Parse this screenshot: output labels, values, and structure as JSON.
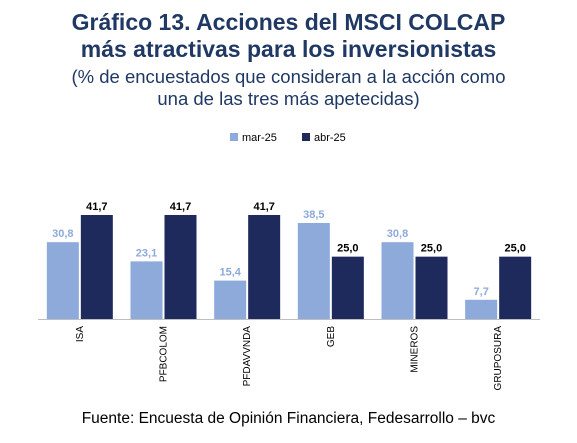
{
  "title_line1": "Gráfico 13. Acciones del MSCI COLCAP",
  "title_line2": "más atractivas para los inversionistas",
  "subtitle_line1": "(% de encuestados que consideran a la acción como",
  "subtitle_line2": "una de las tres más apetecidas)",
  "source": "Fuente: Encuesta de Opinión Financiera, Fedesarrollo – bvc",
  "colors": {
    "mar": "#8eaadb",
    "abr": "#1f2a5c",
    "mar_label": "#8eaadb",
    "abr_label": "#000000",
    "axis": "#bfbfbf"
  },
  "chart_data": {
    "type": "bar",
    "categories": [
      "ISA",
      "PFBCOLOM",
      "PFDAVVNDA",
      "GEB",
      "MINEROS",
      "GRUPOSURA"
    ],
    "series": [
      {
        "name": "mar-25",
        "values": [
          30.8,
          23.1,
          15.4,
          38.5,
          30.8,
          7.7
        ],
        "labels": [
          "30,8",
          "23,1",
          "15,4",
          "38,5",
          "30,8",
          "7,7"
        ]
      },
      {
        "name": "abr-25",
        "values": [
          41.7,
          41.7,
          41.7,
          25.0,
          25.0,
          25.0
        ],
        "labels": [
          "41,7",
          "41,7",
          "41,7",
          "25,0",
          "25,0",
          "25,0"
        ]
      }
    ],
    "ylim": [
      0,
      41.7
    ],
    "legend": "top-center",
    "grid": false
  }
}
